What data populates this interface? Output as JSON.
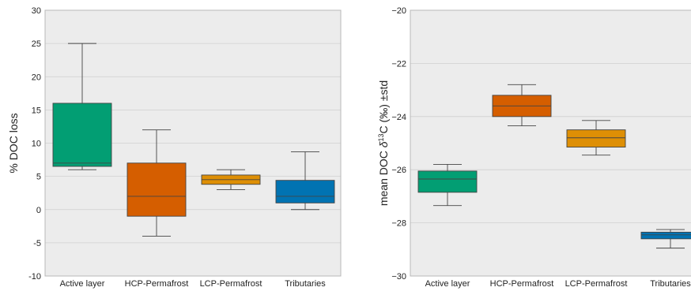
{
  "chart_data": [
    {
      "type": "box",
      "ylabel": "% DOC loss",
      "ylim": [
        -10,
        30
      ],
      "yticks": [
        -10,
        -5,
        0,
        5,
        10,
        15,
        20,
        25,
        30
      ],
      "grid": "horizontal",
      "categories": [
        "Active layer",
        "HCP-Permafrost",
        "LCP-Permafrost",
        "Tributaries"
      ],
      "colors": [
        "#029e73",
        "#d55e00",
        "#de8f05",
        "#0173b2"
      ],
      "boxes": [
        {
          "min": 6.0,
          "q1": 6.5,
          "median": 7.0,
          "q3": 16.0,
          "max": 25.0
        },
        {
          "min": -4.0,
          "q1": -1.0,
          "median": 2.0,
          "q3": 7.0,
          "max": 12.0
        },
        {
          "min": 3.0,
          "q1": 3.8,
          "median": 4.5,
          "q3": 5.2,
          "max": 6.0
        },
        {
          "min": 0.0,
          "q1": 1.0,
          "median": 2.0,
          "q3": 4.4,
          "max": 8.7
        }
      ]
    },
    {
      "type": "box",
      "ylabel_parts": [
        "mean DOC ",
        "δ",
        "13",
        "C (‰) ±std"
      ],
      "ylim": [
        -30,
        -20
      ],
      "yticks": [
        -30,
        -28,
        -26,
        -24,
        -22,
        -20
      ],
      "ytick_labels": [
        "−30",
        "−28",
        "−26",
        "−24",
        "−22",
        "−20"
      ],
      "grid": "horizontal",
      "categories": [
        "Active layer",
        "HCP-Permafrost",
        "LCP-Permafrost",
        "Tributaries"
      ],
      "colors": [
        "#029e73",
        "#d55e00",
        "#de8f05",
        "#0173b2"
      ],
      "boxes": [
        {
          "min": -27.35,
          "q1": -26.85,
          "median": -26.35,
          "q3": -26.05,
          "max": -25.8
        },
        {
          "min": -24.35,
          "q1": -24.0,
          "median": -23.6,
          "q3": -23.2,
          "max": -22.8
        },
        {
          "min": -25.45,
          "q1": -25.15,
          "median": -24.8,
          "q3": -24.5,
          "max": -24.15
        },
        {
          "min": -28.95,
          "q1": -28.6,
          "median": -28.45,
          "q3": -28.35,
          "max": -28.25
        }
      ]
    }
  ]
}
